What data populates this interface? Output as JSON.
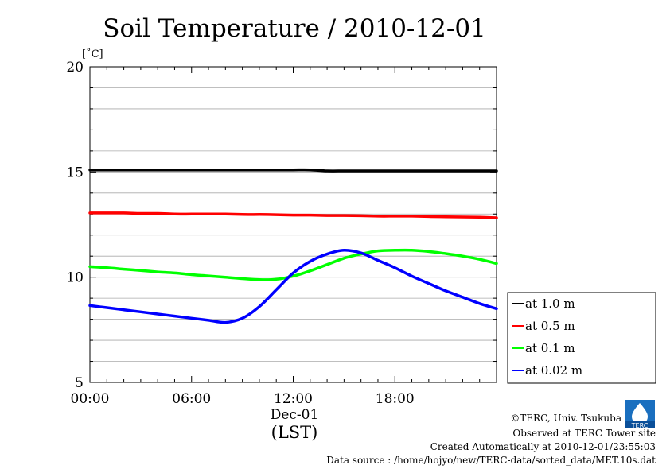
{
  "chart_data": {
    "type": "line",
    "title": "Soil Temperature / 2010-12-01",
    "ylabel": "[˚C]",
    "xlabel": "(LST)",
    "x_date_label": "Dec-01",
    "ylim": [
      5,
      20
    ],
    "xlim_hours": [
      0,
      24
    ],
    "y_ticks": [
      "5",
      "10",
      "15",
      "20"
    ],
    "y_ticks_values": [
      5,
      10,
      15,
      20
    ],
    "x_ticks": [
      "00:00",
      "06:00",
      "12:00",
      "18:00"
    ],
    "x_ticks_values": [
      0,
      6,
      12,
      18
    ],
    "grid": true,
    "legend_position": "right",
    "x_hours": [
      0,
      1,
      2,
      3,
      4,
      5,
      6,
      7,
      8,
      9,
      10,
      11,
      12,
      13,
      14,
      15,
      16,
      17,
      18,
      19,
      20,
      21,
      22,
      23,
      24
    ],
    "series": [
      {
        "name": "at 1.0 m",
        "color": "#000000",
        "values": [
          15.1,
          15.1,
          15.1,
          15.1,
          15.1,
          15.1,
          15.1,
          15.1,
          15.1,
          15.1,
          15.1,
          15.1,
          15.1,
          15.1,
          15.05,
          15.05,
          15.05,
          15.05,
          15.05,
          15.05,
          15.05,
          15.05,
          15.05,
          15.05,
          15.05
        ]
      },
      {
        "name": "at 0.5 m",
        "color": "#ff0000",
        "values": [
          13.05,
          13.05,
          13.05,
          13.03,
          13.03,
          13.0,
          13.0,
          13.0,
          13.0,
          12.98,
          12.98,
          12.97,
          12.95,
          12.95,
          12.93,
          12.93,
          12.92,
          12.9,
          12.9,
          12.9,
          12.88,
          12.87,
          12.86,
          12.85,
          12.82
        ]
      },
      {
        "name": "at 0.1 m",
        "color": "#00ff00",
        "values": [
          10.5,
          10.45,
          10.38,
          10.32,
          10.25,
          10.2,
          10.12,
          10.06,
          10.0,
          9.93,
          9.88,
          9.9,
          10.05,
          10.3,
          10.6,
          10.9,
          11.1,
          11.25,
          11.28,
          11.28,
          11.22,
          11.12,
          11.0,
          10.85,
          10.65
        ]
      },
      {
        "name": "at 0.02 m",
        "color": "#0000ff",
        "values": [
          8.65,
          8.55,
          8.45,
          8.35,
          8.25,
          8.15,
          8.05,
          7.95,
          7.85,
          8.05,
          8.6,
          9.4,
          10.2,
          10.75,
          11.1,
          11.28,
          11.15,
          10.8,
          10.45,
          10.05,
          9.7,
          9.35,
          9.05,
          8.75,
          8.5
        ]
      }
    ]
  },
  "footer": {
    "logo_text": "TERC",
    "copyright": "©TERC, Univ. Tsukuba",
    "observed": "Observed at TERC Tower site",
    "created": "Created Automatically at 2010-12-01/23:55:03",
    "source": "Data source : /home/hojyo/new/TERC-data/sorted_data/MET.10s.dat"
  }
}
